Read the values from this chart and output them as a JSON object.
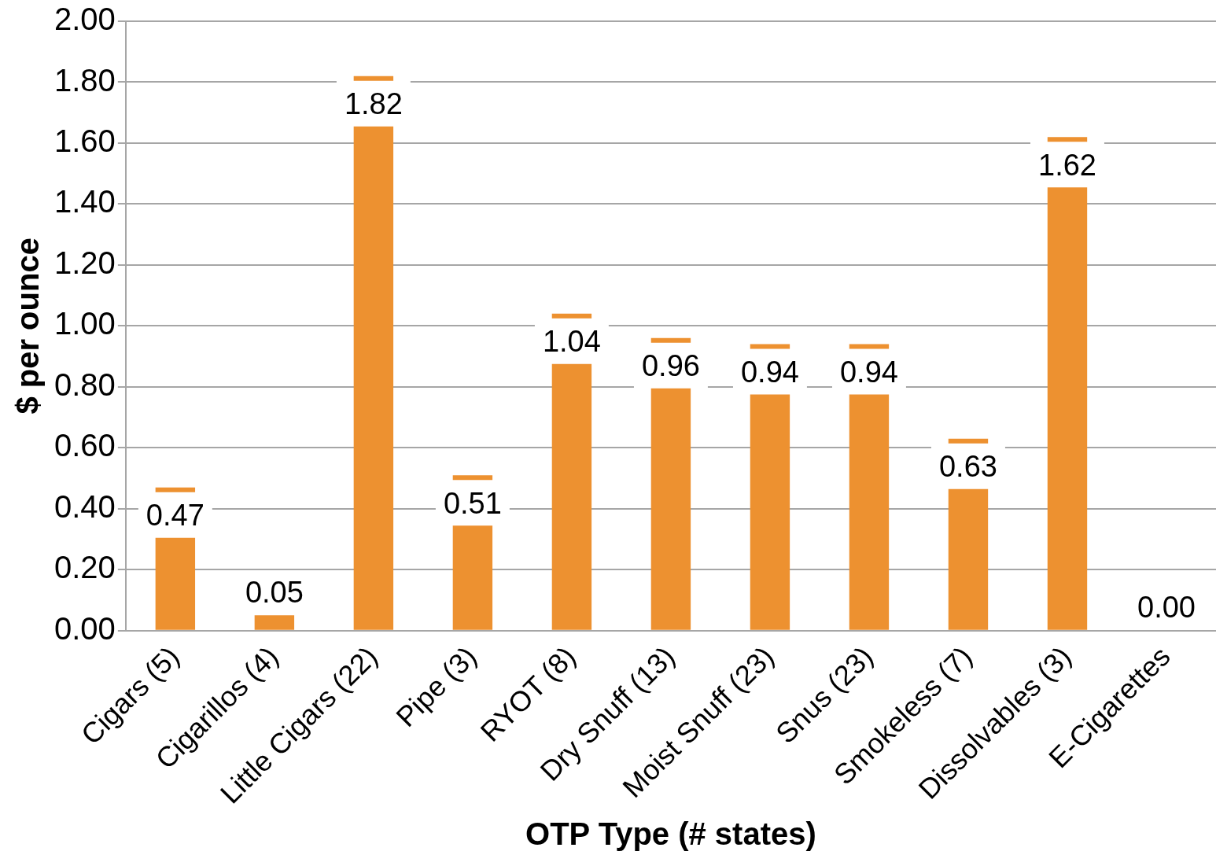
{
  "chart_data": {
    "type": "bar",
    "xlabel": "OTP Type (# states)",
    "ylabel": "$ per ounce",
    "categories": [
      "Cigars (5)",
      "Cigarillos (4)",
      "Little Cigars (22)",
      "Pipe (3)",
      "RYOT (8)",
      "Dry Snuff (13)",
      "Moist Snuff (23)",
      "Snus (23)",
      "Smokeless (7)",
      "Dissolvables (3)",
      "E-Cigarettes"
    ],
    "values": [
      0.47,
      0.05,
      1.82,
      0.51,
      1.04,
      0.96,
      0.94,
      0.94,
      0.63,
      1.62,
      0.0
    ],
    "color": "#ed9130",
    "ylim": [
      0,
      2
    ],
    "yticks": [
      {
        "value": 0,
        "label": "0.00"
      },
      {
        "value": 0.2,
        "label": "0.20"
      },
      {
        "value": 0.4,
        "label": "0.40"
      },
      {
        "value": 0.6,
        "label": "0.60"
      },
      {
        "value": 0.8,
        "label": "0.80"
      },
      {
        "value": 1,
        "label": "1.00"
      },
      {
        "value": 1.2,
        "label": "1.20"
      },
      {
        "value": 1.4,
        "label": "1.40"
      },
      {
        "value": 1.6,
        "label": "1.60"
      },
      {
        "value": 1.8,
        "label": "1.80"
      },
      {
        "value": 2,
        "label": "2.00"
      }
    ],
    "value_labels": [
      "0.47",
      "0.05",
      "1.82",
      "0.51",
      "1.04",
      "0.96",
      "0.94",
      "0.94",
      "0.63",
      "1.62",
      "0.00"
    ],
    "grid": "y",
    "legend": false
  }
}
